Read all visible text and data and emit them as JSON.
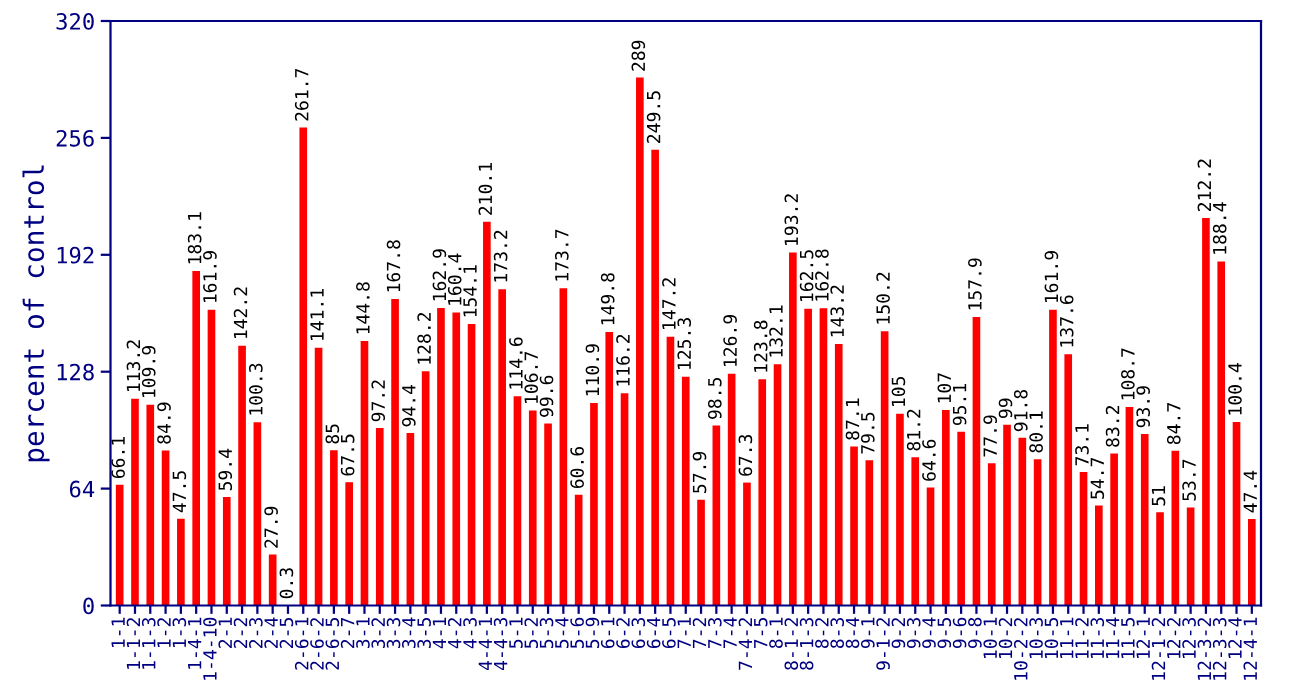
{
  "chart_data": {
    "type": "bar",
    "ylabel": "percent of control",
    "categories": [
      "1-1",
      "1-1-2",
      "1-1-3",
      "1-2",
      "1-3",
      "1-4-1",
      "1-4-10",
      "2-1",
      "2-2",
      "2-3",
      "2-4",
      "2-5",
      "2-6-1",
      "2-6-2",
      "2-6-5",
      "2-7",
      "3-1",
      "3-2",
      "3-3",
      "3-4",
      "3-5",
      "4-1",
      "4-2",
      "4-3",
      "4-4-1",
      "4-4-3",
      "5-1",
      "5-2",
      "5-3",
      "5-4",
      "5-6",
      "5-9",
      "6-1",
      "6-2",
      "6-3",
      "6-4",
      "6-5",
      "7-1",
      "7-2",
      "7-3",
      "7-4",
      "7-4-2",
      "7-5",
      "8-1",
      "8-1-2",
      "8-1-3",
      "8-2",
      "8-3",
      "8-4",
      "9-1",
      "9-1-2",
      "9-2",
      "9-3",
      "9-4",
      "9-5",
      "9-6",
      "9-8",
      "10-1",
      "10-2",
      "10-2-2",
      "10-3",
      "10-5",
      "11-1",
      "11-2",
      "11-3",
      "11-4",
      "11-5",
      "12-1",
      "12-1-2",
      "12-2",
      "12-3",
      "12-3-2",
      "12-3-3",
      "12-4",
      "12-4-1"
    ],
    "values": [
      66.1,
      113.2,
      109.9,
      84.9,
      47.5,
      183.1,
      161.9,
      59.4,
      142.2,
      100.3,
      27.9,
      0.3,
      261.7,
      141.1,
      85,
      67.5,
      144.8,
      97.2,
      167.8,
      94.4,
      128.2,
      162.9,
      160.4,
      154.1,
      210.1,
      173.2,
      114.6,
      106.7,
      99.6,
      173.7,
      60.6,
      110.9,
      149.8,
      116.2,
      289,
      249.5,
      147.2,
      125.3,
      57.9,
      98.5,
      126.9,
      67.3,
      123.8,
      132.1,
      193.2,
      162.5,
      162.8,
      143.2,
      87.1,
      79.5,
      150.2,
      105,
      81.2,
      64.6,
      107,
      95.1,
      157.9,
      77.9,
      99,
      91.8,
      80.1,
      161.9,
      137.6,
      73.1,
      54.7,
      83.2,
      108.7,
      93.9,
      51,
      84.7,
      53.7,
      212.2,
      188.4,
      100.4,
      47.4
    ],
    "color": "#ff0000",
    "ylim": [
      0,
      320
    ],
    "yticks": [
      0,
      64,
      128,
      192,
      256,
      320
    ],
    "data_labels": true
  }
}
